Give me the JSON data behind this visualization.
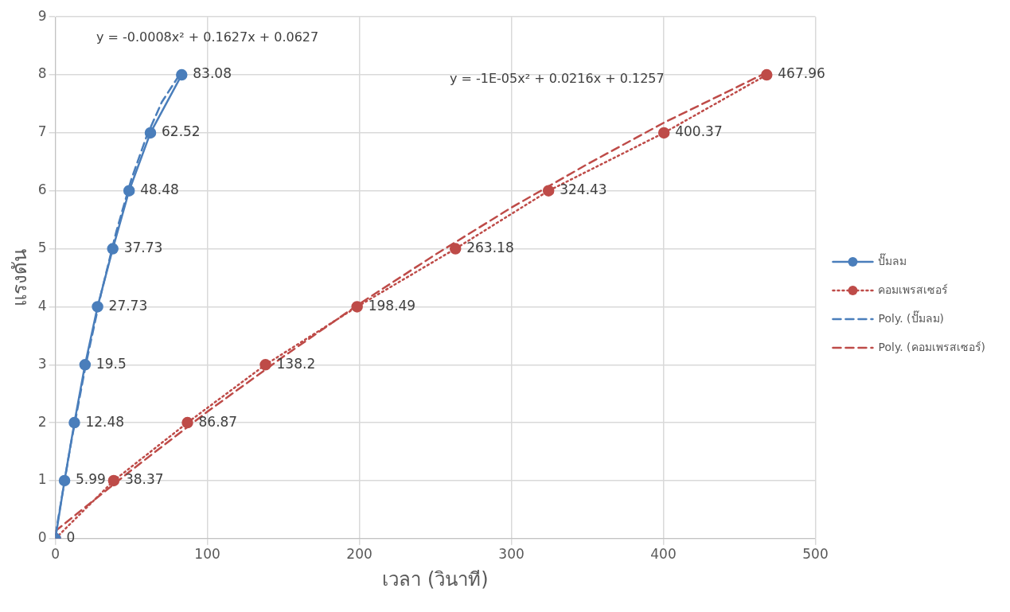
{
  "chart_data": {
    "type": "scatter",
    "xlabel": "เวลา (วินาที)",
    "ylabel": "แรงดัน",
    "xlim": [
      0,
      500
    ],
    "xticks": [
      0,
      100,
      200,
      300,
      400,
      500
    ],
    "ylim": [
      0,
      9
    ],
    "yticks": [
      0,
      1,
      2,
      3,
      4,
      5,
      6,
      7,
      8,
      9
    ],
    "grid": true,
    "legend": "right",
    "marker": "circle",
    "series": [
      {
        "name": "ปั๊มลม",
        "type": "line",
        "color": "#4a7ebb",
        "line_style": "solid",
        "x": [
          0,
          5.99,
          12.48,
          19.5,
          27.73,
          37.73,
          48.48,
          62.52,
          83.08
        ],
        "values": [
          0,
          1,
          2,
          3,
          4,
          5,
          6,
          7,
          8
        ]
      },
      {
        "name": "คอมเพรสเซอร์",
        "type": "line",
        "color": "#be4b48",
        "line_style": "dotted",
        "x": [
          0,
          38.37,
          86.87,
          138.2,
          198.49,
          263.18,
          324.43,
          400.37,
          467.96
        ],
        "values": [
          0,
          1,
          2,
          3,
          4,
          5,
          6,
          7,
          8
        ]
      },
      {
        "name": "Poly. (ปั๊มลม)",
        "type": "line",
        "color": "#4a7ebb",
        "line_style": "dashed",
        "marker": "none",
        "x": [
          0,
          10,
          20,
          30,
          40,
          50,
          60,
          70,
          83.08
        ],
        "values": [
          0.06,
          1.61,
          3.0,
          4.22,
          5.29,
          6.2,
          6.94,
          7.53,
          8.06
        ]
      },
      {
        "name": "Poly. (คอมเพรสเซอร์)",
        "type": "line",
        "color": "#be4b48",
        "line_style": "dashed",
        "marker": "none",
        "x": [
          0,
          50,
          100,
          150,
          200,
          250,
          300,
          350,
          400,
          467.96
        ],
        "values": [
          0.13,
          1.18,
          2.19,
          3.14,
          4.05,
          4.9,
          5.71,
          6.46,
          7.17,
          8.04
        ]
      }
    ],
    "annotations": [
      "y = -0.0008x² + 0.1627x + 0.0627",
      "y = -1E-05x² + 0.0216x + 0.1257",
      {
        "text": "5.99",
        "x": 5.99,
        "y": 1
      },
      {
        "text": "12.48",
        "x": 12.48,
        "y": 2
      },
      {
        "text": "19.5",
        "x": 19.5,
        "y": 3
      },
      {
        "text": "27.73",
        "x": 27.73,
        "y": 4
      },
      {
        "text": "37.73",
        "x": 37.73,
        "y": 5
      },
      {
        "text": "48.48",
        "x": 48.48,
        "y": 6
      },
      {
        "text": "62.52",
        "x": 62.52,
        "y": 7
      },
      {
        "text": "83.08",
        "x": 83.08,
        "y": 8
      },
      {
        "text": "0",
        "x": 0,
        "y": 0
      },
      {
        "text": "38.37",
        "x": 38.37,
        "y": 1
      },
      {
        "text": "86.87",
        "x": 86.87,
        "y": 2
      },
      {
        "text": "138.2",
        "x": 138.2,
        "y": 3
      },
      {
        "text": "198.49",
        "x": 198.49,
        "y": 4
      },
      {
        "text": "263.18",
        "x": 263.18,
        "y": 5
      },
      {
        "text": "324.43",
        "x": 324.43,
        "y": 6
      },
      {
        "text": "400.37",
        "x": 400.37,
        "y": 7
      },
      {
        "text": "467.96",
        "x": 467.96,
        "y": 8
      }
    ]
  }
}
